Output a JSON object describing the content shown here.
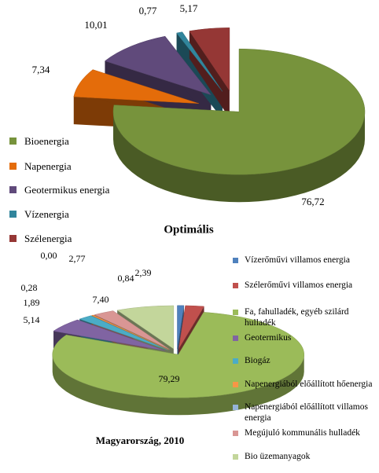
{
  "chart_data": [
    {
      "type": "pie",
      "title": "Optimális",
      "categories": [
        "Bioenergia",
        "Napenergia",
        "Geotermikus energia",
        "Vízenergia",
        "Szélenergia"
      ],
      "values": [
        76.72,
        7.34,
        10.01,
        0.77,
        5.17
      ],
      "value_labels": [
        "76,72",
        "7,34",
        "10,01",
        "0,77",
        "5,17"
      ],
      "colors": [
        "#77933c",
        "#e46c0a",
        "#604a7b",
        "#31859c",
        "#953735"
      ]
    },
    {
      "type": "pie",
      "title": "Magyarország, 2010",
      "categories": [
        "Vízerőművi villamos energia",
        "Szélerőművi villamos energia",
        "Fa, fahulladék, egyéb szilárd hulladék",
        "Geotermikus",
        "Biogáz",
        "Napenergiából előállított hőenergia",
        "Napenergiából előállított villamos energia",
        "Megújuló kommunális hulladék",
        "Bio üzemanyagok"
      ],
      "values": [
        0.84,
        2.39,
        79.29,
        5.14,
        1.89,
        0.28,
        0.0,
        2.77,
        7.4
      ],
      "value_labels": [
        "0,84",
        "2,39",
        "79,29",
        "5,14",
        "1,89",
        "0,28",
        "0,00",
        "2,77",
        "7,40"
      ],
      "colors": [
        "#4f81bd",
        "#c0504d",
        "#9bbb59",
        "#8064a2",
        "#4bacc6",
        "#f79646",
        "#95b3d7",
        "#d99694",
        "#c3d69b"
      ]
    }
  ]
}
